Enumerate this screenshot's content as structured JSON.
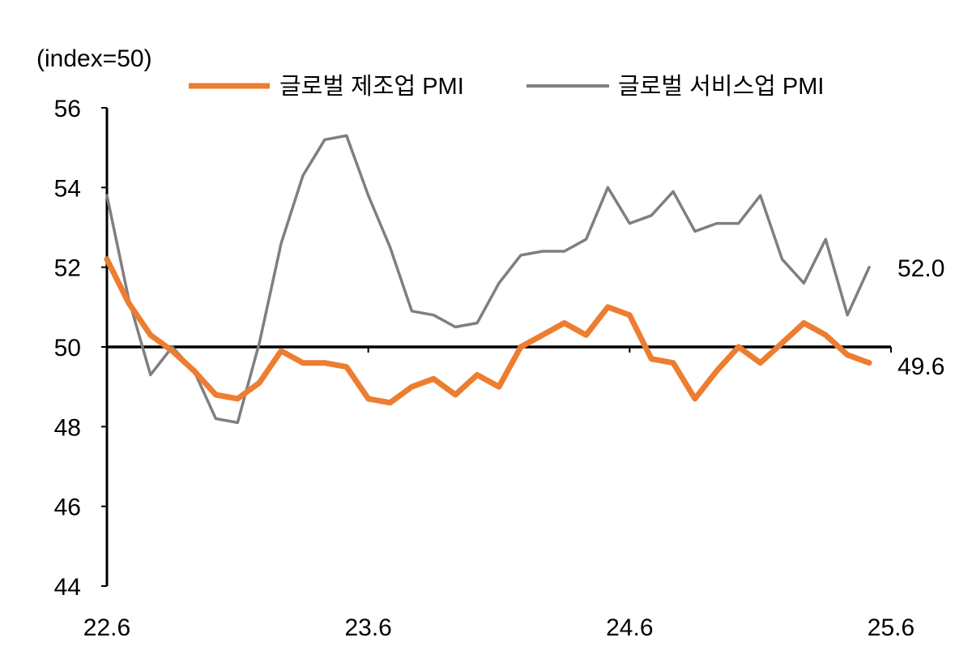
{
  "chart_data": {
    "type": "line",
    "unit_label": "(index=50)",
    "ylim": [
      44,
      56
    ],
    "yticks": [
      44,
      46,
      48,
      50,
      52,
      54,
      56
    ],
    "reference_line": 50,
    "xtick_labels": [
      "22.6",
      "23.6",
      "24.6",
      "25.6"
    ],
    "x": [
      "22.6",
      "22.7",
      "22.8",
      "22.9",
      "22.10",
      "22.11",
      "22.12",
      "23.1",
      "23.2",
      "23.3",
      "23.4",
      "23.5",
      "23.6",
      "23.7",
      "23.8",
      "23.9",
      "23.10",
      "23.11",
      "23.12",
      "24.1",
      "24.2",
      "24.3",
      "24.4",
      "24.5",
      "24.6",
      "24.7",
      "24.8",
      "24.9",
      "24.10",
      "24.11",
      "24.12",
      "25.1",
      "25.2",
      "25.3",
      "25.4",
      "25.5"
    ],
    "grid": false,
    "legend_position": "top",
    "series": [
      {
        "name": "글로벌 제조업 PMI",
        "color": "#ED7D31",
        "end_label": "49.6",
        "values": [
          52.2,
          51.1,
          50.3,
          49.9,
          49.4,
          48.8,
          48.7,
          49.1,
          49.9,
          49.6,
          49.6,
          49.5,
          48.7,
          48.6,
          49.0,
          49.2,
          48.8,
          49.3,
          49.0,
          50.0,
          50.3,
          50.6,
          50.3,
          51.0,
          50.8,
          49.7,
          49.6,
          48.7,
          49.4,
          50.0,
          49.6,
          50.1,
          50.6,
          50.3,
          49.8,
          49.6
        ]
      },
      {
        "name": "글로벌 서비스업 PMI",
        "color": "#7F7F7F",
        "end_label": "52.0",
        "values": [
          53.8,
          51.2,
          49.3,
          50.0,
          49.4,
          48.2,
          48.1,
          50.1,
          52.6,
          54.3,
          55.2,
          55.3,
          53.8,
          52.5,
          50.9,
          50.8,
          50.5,
          50.6,
          51.6,
          52.3,
          52.4,
          52.4,
          52.7,
          54.0,
          53.1,
          53.3,
          53.9,
          52.9,
          53.1,
          53.1,
          53.8,
          52.2,
          51.6,
          52.7,
          50.8,
          52.0
        ]
      }
    ]
  }
}
